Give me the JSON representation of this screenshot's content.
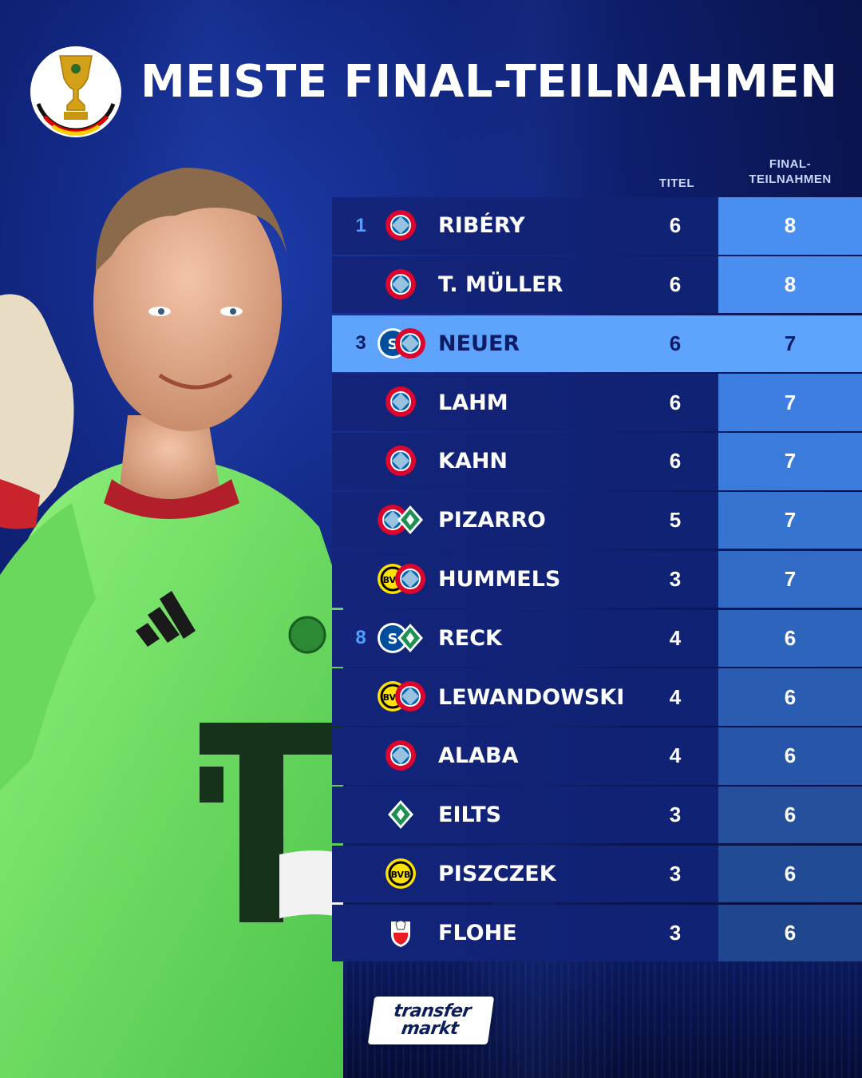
{
  "title": "MEISTE FINAL-TEILNAHMEN",
  "header": {
    "col_titel": "TITEL",
    "col_final_line1": "FINAL-",
    "col_final_line2": "TEILNAHMEN"
  },
  "colors": {
    "highlight": "#5ea4ff",
    "rank_blue": "#4ea1ff",
    "row_bg": "#13247a",
    "bayern_red": "#dc052d",
    "werder_green": "#1d9053",
    "schalke_blue": "#004d9d",
    "bvb_yellow": "#fde100"
  },
  "rows": [
    {
      "rank": "1",
      "name": "RIBÉRY",
      "titel": "6",
      "finals": "8",
      "clubs": [
        "bayern-icon"
      ],
      "highlight": false
    },
    {
      "rank": "",
      "name": "T. MÜLLER",
      "titel": "6",
      "finals": "8",
      "clubs": [
        "bayern-icon"
      ],
      "highlight": false
    },
    {
      "rank": "3",
      "name": "NEUER",
      "titel": "6",
      "finals": "7",
      "clubs": [
        "schalke-icon",
        "bayern-icon"
      ],
      "highlight": true
    },
    {
      "rank": "",
      "name": "LAHM",
      "titel": "6",
      "finals": "7",
      "clubs": [
        "bayern-icon"
      ],
      "highlight": false
    },
    {
      "rank": "",
      "name": "KAHN",
      "titel": "6",
      "finals": "7",
      "clubs": [
        "bayern-icon"
      ],
      "highlight": false
    },
    {
      "rank": "",
      "name": "PIZARRO",
      "titel": "5",
      "finals": "7",
      "clubs": [
        "bayern-icon",
        "werder-icon"
      ],
      "highlight": false
    },
    {
      "rank": "",
      "name": "HUMMELS",
      "titel": "3",
      "finals": "7",
      "clubs": [
        "bvb-icon",
        "bayern-icon"
      ],
      "highlight": false
    },
    {
      "rank": "8",
      "name": "RECK",
      "titel": "4",
      "finals": "6",
      "clubs": [
        "schalke-icon",
        "werder-icon"
      ],
      "highlight": false
    },
    {
      "rank": "",
      "name": "LEWANDOWSKI",
      "titel": "4",
      "finals": "6",
      "clubs": [
        "bvb-icon",
        "bayern-icon"
      ],
      "highlight": false
    },
    {
      "rank": "",
      "name": "ALABA",
      "titel": "4",
      "finals": "6",
      "clubs": [
        "bayern-icon"
      ],
      "highlight": false
    },
    {
      "rank": "",
      "name": "EILTS",
      "titel": "3",
      "finals": "6",
      "clubs": [
        "werder-icon"
      ],
      "highlight": false
    },
    {
      "rank": "",
      "name": "PISZCZEK",
      "titel": "3",
      "finals": "6",
      "clubs": [
        "bvb-icon"
      ],
      "highlight": false
    },
    {
      "rank": "",
      "name": "FLOHE",
      "titel": "3",
      "finals": "6",
      "clubs": [
        "koeln-icon"
      ],
      "highlight": false
    }
  ],
  "branding": {
    "logo_line1": "transfer",
    "logo_line2": "markt"
  }
}
